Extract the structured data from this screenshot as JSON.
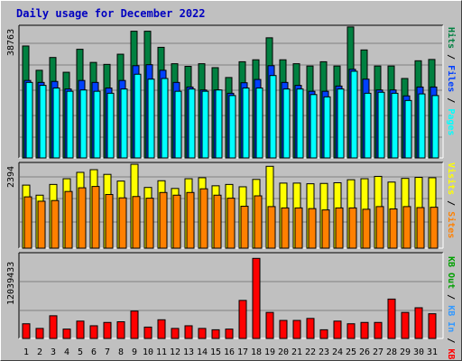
{
  "title": "Daily usage for December 2022",
  "colors": {
    "hits": "#008040",
    "files": "#0040ff",
    "pages": "#00ffff",
    "visits": "#ffff00",
    "sites": "#ff8000",
    "kbin": "#3399ff",
    "kbout": "#00a000",
    "kbf": "#ff0000"
  },
  "chart_data": [
    {
      "type": "bar",
      "name": "hits-files-pages",
      "categories": [
        "1",
        "2",
        "3",
        "4",
        "5",
        "6",
        "7",
        "8",
        "9",
        "10",
        "11",
        "12",
        "13",
        "14",
        "15",
        "16",
        "17",
        "18",
        "19",
        "20",
        "21",
        "22",
        "23",
        "24",
        "25",
        "26",
        "27",
        "28",
        "29",
        "30",
        "31"
      ],
      "ymax_label": "38763",
      "ymax": 38763,
      "right_labels": [
        "Pages",
        "Files",
        "Hits"
      ],
      "series": [
        {
          "name": "Hits",
          "values": [
            34100,
            26700,
            30600,
            26100,
            33100,
            29100,
            28500,
            31600,
            38600,
            38600,
            33700,
            28700,
            27900,
            28700,
            27500,
            24500,
            29300,
            29900,
            36600,
            29900,
            28700,
            28000,
            29300,
            28000,
            39900,
            32900,
            28000,
            28000,
            24200,
            29600,
            30000
          ]
        },
        {
          "name": "Files",
          "values": [
            23600,
            23000,
            23300,
            21000,
            23600,
            23000,
            21300,
            23600,
            28100,
            28400,
            26700,
            23000,
            21600,
            20700,
            20700,
            19700,
            22900,
            23900,
            28100,
            23000,
            22100,
            20300,
            20300,
            21900,
            27000,
            24000,
            20700,
            20700,
            18900,
            21600,
            21600
          ]
        },
        {
          "name": "Pages",
          "values": [
            23000,
            22100,
            21300,
            20300,
            20700,
            20300,
            19700,
            21000,
            25500,
            24000,
            24200,
            20300,
            21000,
            20300,
            20700,
            19000,
            21300,
            21300,
            25100,
            21000,
            21000,
            19300,
            18600,
            21000,
            26400,
            19700,
            20000,
            19700,
            17500,
            19500,
            19000
          ]
        }
      ]
    },
    {
      "type": "bar",
      "name": "visits-sites",
      "categories": [
        "1",
        "2",
        "3",
        "4",
        "5",
        "6",
        "7",
        "8",
        "9",
        "10",
        "11",
        "12",
        "13",
        "14",
        "15",
        "16",
        "17",
        "18",
        "19",
        "20",
        "21",
        "22",
        "23",
        "24",
        "25",
        "26",
        "27",
        "28",
        "29",
        "30",
        "31"
      ],
      "ymax_label": "2394",
      "ymax": 2394,
      "right_labels": [
        "Sites",
        "Visits"
      ],
      "series": [
        {
          "name": "Visits",
          "values": [
            1880,
            1580,
            1900,
            2070,
            2260,
            2340,
            2200,
            2000,
            2500,
            1810,
            2010,
            1780,
            2070,
            2100,
            1860,
            1900,
            1830,
            2050,
            2440,
            1940,
            1940,
            1920,
            1930,
            1950,
            2040,
            2070,
            2140,
            1970,
            2080,
            2110,
            2100
          ]
        },
        {
          "name": "Sites",
          "values": [
            1530,
            1400,
            1420,
            1690,
            1800,
            1840,
            1600,
            1500,
            1540,
            1490,
            1660,
            1580,
            1660,
            1770,
            1580,
            1490,
            1250,
            1560,
            1240,
            1200,
            1200,
            1180,
            1140,
            1200,
            1200,
            1160,
            1240,
            1170,
            1240,
            1210,
            1220
          ]
        }
      ]
    },
    {
      "type": "bar",
      "name": "kbytes",
      "categories": [
        "1",
        "2",
        "3",
        "4",
        "5",
        "6",
        "7",
        "8",
        "9",
        "10",
        "11",
        "12",
        "13",
        "14",
        "15",
        "16",
        "17",
        "18",
        "19",
        "20",
        "21",
        "22",
        "23",
        "24",
        "25",
        "26",
        "27",
        "28",
        "29",
        "30",
        "31"
      ],
      "ymax_label": "12039433",
      "ymax": 12039433,
      "right_labels": [
        "KB F",
        "KB In",
        "KB Out"
      ],
      "series": [
        {
          "name": "KB F",
          "values": [
            2200000,
            1500000,
            3400000,
            1400000,
            2600000,
            1900000,
            2400000,
            2500000,
            4100000,
            1700000,
            2800000,
            1500000,
            1900000,
            1500000,
            1300000,
            1400000,
            5700000,
            12000000,
            3900000,
            2700000,
            2700000,
            3000000,
            1300000,
            2600000,
            2200000,
            2400000,
            2400000,
            5900000,
            3900000,
            4600000,
            3700000
          ]
        }
      ]
    }
  ]
}
